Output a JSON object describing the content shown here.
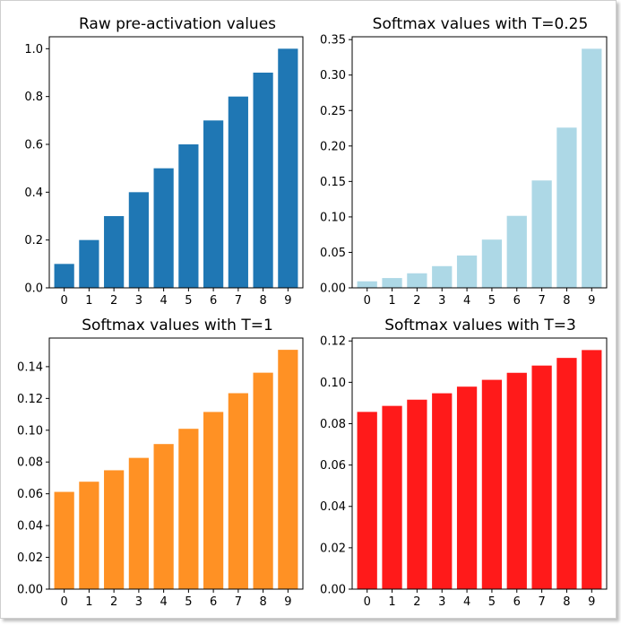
{
  "chart_data": [
    {
      "type": "bar",
      "title": "Raw pre-activation values",
      "categories": [
        "0",
        "1",
        "2",
        "3",
        "4",
        "5",
        "6",
        "7",
        "8",
        "9"
      ],
      "values": [
        0.1,
        0.2,
        0.3,
        0.4,
        0.5,
        0.6,
        0.7,
        0.8,
        0.9,
        1.0
      ],
      "ylim": [
        0,
        1.05
      ],
      "yticks": [
        0.0,
        0.2,
        0.4,
        0.6,
        0.8,
        1.0
      ],
      "ytick_labels": [
        "0.0",
        "0.2",
        "0.4",
        "0.6",
        "0.8",
        "1.0"
      ],
      "color": "#1f77b4",
      "grid": false
    },
    {
      "type": "bar",
      "title": "Softmax values with T=0.25",
      "categories": [
        "0",
        "1",
        "2",
        "3",
        "4",
        "5",
        "6",
        "7",
        "8",
        "9"
      ],
      "values": [
        0.0092,
        0.0138,
        0.0205,
        0.0306,
        0.0456,
        0.068,
        0.1015,
        0.1514,
        0.2259,
        0.3371
      ],
      "ylim": [
        0,
        0.354
      ],
      "yticks": [
        0.0,
        0.05,
        0.1,
        0.15,
        0.2,
        0.25,
        0.3,
        0.35
      ],
      "ytick_labels": [
        "0.00",
        "0.05",
        "0.10",
        "0.15",
        "0.20",
        "0.25",
        "0.30",
        "0.35"
      ],
      "color": "#add8e6",
      "grid": false
    },
    {
      "type": "bar",
      "title": "Softmax values with T=1",
      "categories": [
        "0",
        "1",
        "2",
        "3",
        "4",
        "5",
        "6",
        "7",
        "8",
        "9"
      ],
      "values": [
        0.0612,
        0.0676,
        0.0748,
        0.0826,
        0.0913,
        0.1009,
        0.1115,
        0.1233,
        0.1362,
        0.1506
      ],
      "ylim": [
        0,
        0.158
      ],
      "yticks": [
        0.0,
        0.02,
        0.04,
        0.06,
        0.08,
        0.1,
        0.12,
        0.14
      ],
      "ytick_labels": [
        "0.00",
        "0.02",
        "0.04",
        "0.06",
        "0.08",
        "0.10",
        "0.12",
        "0.14"
      ],
      "color": "#ff9124",
      "grid": false
    },
    {
      "type": "bar",
      "title": "Softmax values with T=3",
      "categories": [
        "0",
        "1",
        "2",
        "3",
        "4",
        "5",
        "6",
        "7",
        "8",
        "9"
      ],
      "values": [
        0.0857,
        0.0886,
        0.0916,
        0.0947,
        0.0979,
        0.1012,
        0.1046,
        0.1081,
        0.1118,
        0.1156
      ],
      "ylim": [
        0,
        0.1214
      ],
      "yticks": [
        0.0,
        0.02,
        0.04,
        0.06,
        0.08,
        0.1,
        0.12
      ],
      "ytick_labels": [
        "0.00",
        "0.02",
        "0.04",
        "0.06",
        "0.08",
        "0.10",
        "0.12"
      ],
      "color": "#ff1a1a",
      "grid": false
    }
  ]
}
